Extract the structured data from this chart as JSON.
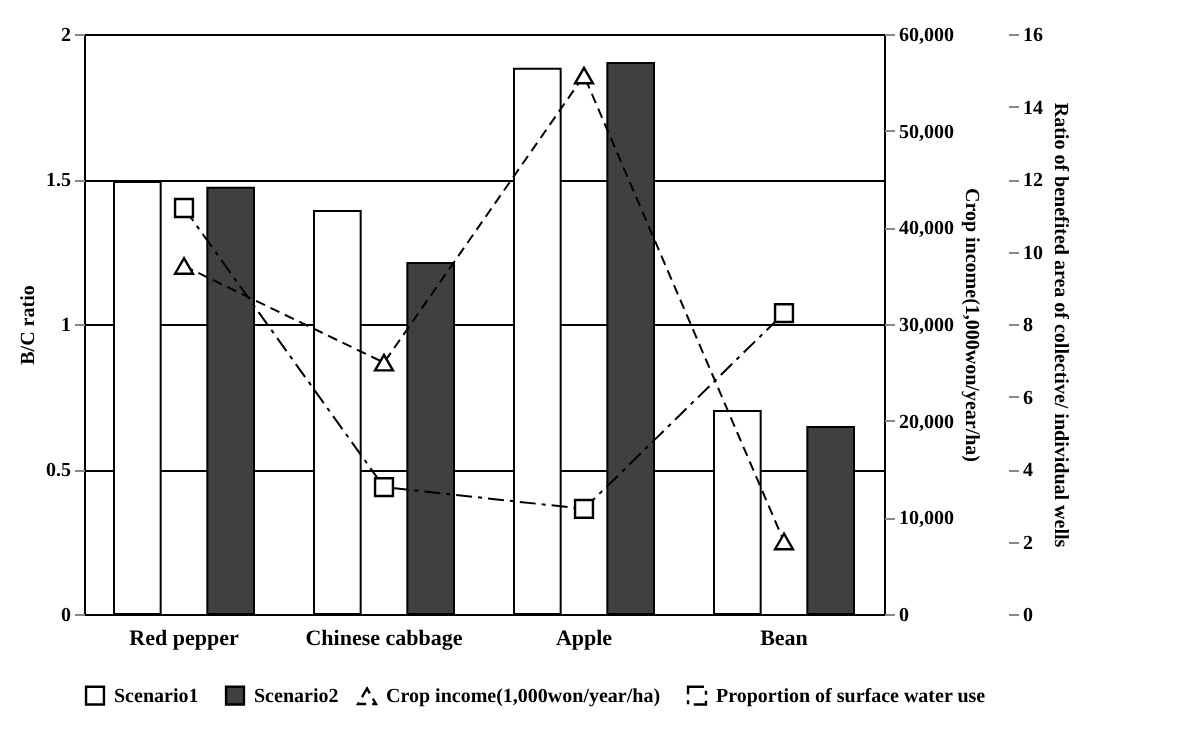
{
  "chart_data": {
    "type": "bar",
    "categories": [
      "Red pepper",
      "Chinese cabbage",
      "Apple",
      "Bean"
    ],
    "ylabel": "B/C ratio",
    "y2label": "Crop income(1,000won/year/ha)",
    "y3label": "Ratio of benefited area of collective/ individual wells",
    "ylim": [
      0,
      2
    ],
    "yticks": [
      0,
      0.5,
      1,
      1.5,
      2
    ],
    "y2lim": [
      0,
      60000
    ],
    "y2ticks": [
      {
        "value": 0,
        "label": "0"
      },
      {
        "value": 10000,
        "label": "10,000"
      },
      {
        "value": 20000,
        "label": "20,000"
      },
      {
        "value": 30000,
        "label": "30,000"
      },
      {
        "value": 40000,
        "label": "40,000"
      },
      {
        "value": 50000,
        "label": "50,000"
      },
      {
        "value": 60000,
        "label": "60,000"
      }
    ],
    "y3lim": [
      0,
      16
    ],
    "y3ticks": [
      0,
      2,
      4,
      6,
      8,
      10,
      12,
      14,
      16
    ],
    "grid": "y",
    "legend": "bottom",
    "series": [
      {
        "name": "Scenario1",
        "color": "#ffffff",
        "values": [
          1.49,
          1.39,
          1.88,
          0.7
        ]
      },
      {
        "name": "Scenario2",
        "color": "#404040",
        "values": [
          1.47,
          1.21,
          1.9,
          0.645
        ]
      },
      {
        "name": "Crop income(1,000won/year/ha)",
        "type": "line",
        "axis": "y2",
        "color": "#000000",
        "marker": "triangle",
        "line_style": "dashed",
        "values": [
          36000,
          26000,
          55700,
          7500
        ]
      },
      {
        "name": "Proportion of surface water use",
        "type": "line",
        "axis": "y3",
        "color": "#000000",
        "marker": "square",
        "line_style": "dashdot",
        "values": [
          11.2,
          3.5,
          2.9,
          8.3
        ]
      }
    ]
  }
}
